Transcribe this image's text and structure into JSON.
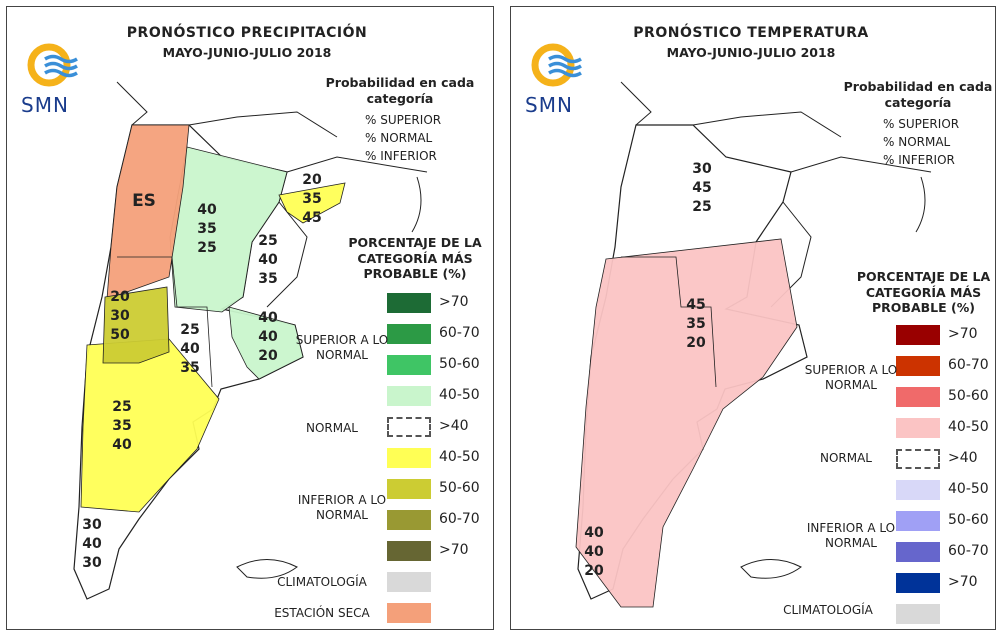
{
  "panels": [
    {
      "title": "PRONÓSTICO PRECIPITACIÓN",
      "period": "MAYO-JUNIO-JULIO 2018",
      "logo": "SMN",
      "legend_heading": "Probabilidad en cada categoría",
      "order": [
        "% SUPERIOR",
        "% NORMAL",
        "% INFERIOR"
      ],
      "scale_title": "PORCENTAJE DE LA CATEGORÍA MÁS PROBABLE (%)",
      "legend": [
        {
          "label": ">70",
          "color": "#1d6b35"
        },
        {
          "label": "60-70",
          "color": "#2c9a45"
        },
        {
          "label": "50-60",
          "color": "#3fc565"
        },
        {
          "label": "40-50",
          "color": "#c9f5cc"
        },
        {
          "label": ">40",
          "color": "#ffffff"
        },
        {
          "label": "40-50",
          "color": "#ffff55"
        },
        {
          "label": "50-60",
          "color": "#cccc33"
        },
        {
          "label": "60-70",
          "color": "#999933"
        },
        {
          "label": ">70",
          "color": "#666633"
        },
        {
          "color": "#d9d9d9"
        },
        {
          "color": "#f4a07a"
        }
      ],
      "groups": [
        "SUPERIOR A LO NORMAL",
        "NORMAL",
        "INFERIOR A LO NORMAL",
        "CLIMATOLOGÍA",
        "ESTACIÓN SECA"
      ],
      "dry_label": "ES",
      "regions": [
        [
          20,
          35,
          45
        ],
        [
          40,
          35,
          25
        ],
        [
          25,
          40,
          35
        ],
        [
          20,
          30,
          50
        ],
        [
          25,
          40,
          35
        ],
        [
          40,
          40,
          20
        ],
        [
          25,
          35,
          40
        ],
        [
          30,
          40,
          30
        ]
      ]
    },
    {
      "title": "PRONÓSTICO TEMPERATURA",
      "period": "MAYO-JUNIO-JULIO 2018",
      "logo": "SMN",
      "legend_heading": "Probabilidad en cada categoría",
      "order": [
        "% SUPERIOR",
        "% NORMAL",
        "% INFERIOR"
      ],
      "scale_title": "PORCENTAJE DE LA CATEGORÍA MÁS PROBABLE (%)",
      "legend": [
        {
          "label": ">70",
          "color": "#990000"
        },
        {
          "label": "60-70",
          "color": "#cc3300"
        },
        {
          "label": "50-60",
          "color": "#f06a6a"
        },
        {
          "label": "40-50",
          "color": "#fbc4c4"
        },
        {
          "label": ">40",
          "color": "#ffffff"
        },
        {
          "label": "40-50",
          "color": "#d8d8f8"
        },
        {
          "label": "50-60",
          "color": "#a0a0f5"
        },
        {
          "label": "60-70",
          "color": "#6666cc"
        },
        {
          "label": ">70",
          "color": "#003399"
        },
        {
          "color": "#d9d9d9"
        }
      ],
      "groups": [
        "SUPERIOR A LO NORMAL",
        "NORMAL",
        "INFERIOR A LO NORMAL",
        "CLIMATOLOGÍA"
      ],
      "regions": [
        [
          30,
          45,
          25
        ],
        [
          45,
          35,
          20
        ],
        [
          40,
          40,
          20
        ]
      ]
    }
  ]
}
